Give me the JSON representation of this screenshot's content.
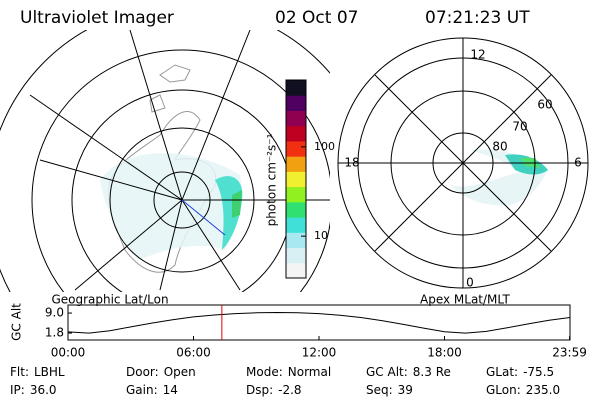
{
  "header": {
    "title": "Ultraviolet Imager",
    "date": "02 Oct 07",
    "time": "07:21:23 UT"
  },
  "left_map": {
    "label": "Geographic Lat/Lon"
  },
  "right_map": {
    "label": "Apex MLat/MLT",
    "mlt_labels": [
      "12",
      "6",
      "0",
      "18"
    ],
    "lat_labels": [
      "60",
      "70",
      "80"
    ]
  },
  "colorbar": {
    "axis_label": "photon cm⁻²s⁻¹",
    "log": true,
    "clim": [
      3.4,
      560
    ],
    "ticks": [
      10,
      100
    ],
    "colors": [
      "#f4f4f4",
      "#d8f0f4",
      "#a8e8f0",
      "#40e0d8",
      "#30e070",
      "#90f020",
      "#f0f030",
      "#f0a010",
      "#f03010",
      "#c00020",
      "#900050",
      "#500060",
      "#101020"
    ]
  },
  "orbit": {
    "axis_label": "GC Alt",
    "xlim": [
      0,
      24
    ],
    "xticks": [
      {
        "value": 0,
        "label": "00:00"
      },
      {
        "value": 6,
        "label": "06:00"
      },
      {
        "value": 12,
        "label": "12:00"
      },
      {
        "value": 18,
        "label": "18:00"
      },
      {
        "value": 23.98,
        "label": "23:59"
      }
    ],
    "ylim": [
      -0.7,
      11.9
    ],
    "yticks": [
      {
        "value": 1.8,
        "label": "1.8"
      },
      {
        "value": 9,
        "label": "9.0"
      }
    ],
    "hours": [
      0,
      1,
      2,
      3,
      4,
      5,
      6,
      7,
      8,
      9,
      10,
      11,
      12,
      13,
      14,
      15,
      16,
      17,
      18,
      19,
      20,
      21,
      22,
      23,
      24
    ],
    "altitude": [
      2.2,
      1.8,
      2.6,
      4.0,
      5.4,
      6.6,
      7.6,
      8.3,
      8.8,
      9.1,
      9.2,
      9.1,
      8.8,
      8.2,
      7.4,
      6.3,
      5.0,
      3.6,
      2.3,
      1.8,
      2.4,
      3.7,
      5.1,
      6.4,
      7.4
    ],
    "marker": 7.356,
    "marker_color": "#e00000"
  },
  "status": {
    "rows": [
      [
        [
          "Flt:",
          "LBHL"
        ],
        [
          "Door:",
          "Open"
        ],
        [
          "Mode:",
          "Normal"
        ],
        [
          "GC Alt:",
          "8.3 Re"
        ],
        [
          "GLat:",
          "-75.5"
        ]
      ],
      [
        [
          "IP:",
          "36.0"
        ],
        [
          "Gain:",
          "14"
        ],
        [
          "Dsp:",
          "-2.8"
        ],
        [
          "Seq:",
          "39"
        ],
        [
          "GLon:",
          "235.0"
        ]
      ]
    ]
  }
}
